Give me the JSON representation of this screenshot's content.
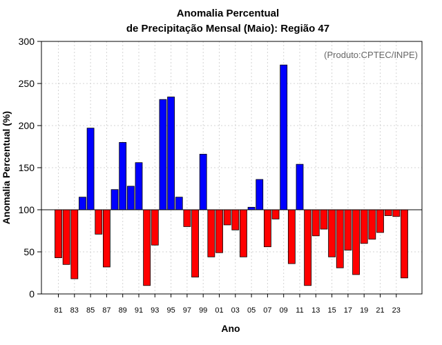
{
  "chart_data": {
    "type": "bar",
    "title_line1": "Anomalia Percentual",
    "title_line2": "de Precipitação Mensal (Maio): Região 47",
    "xlabel": "Ano",
    "ylabel": "Anomalia Percentual (%)",
    "annotation": "(Produto:CPTEC/INPE)",
    "ylim": [
      0,
      300
    ],
    "yticks": [
      "0",
      "50",
      "100",
      "150",
      "200",
      "250",
      "300"
    ],
    "baseline": 100,
    "categories": [
      "81",
      "82",
      "83",
      "84",
      "85",
      "86",
      "87",
      "88",
      "89",
      "90",
      "91",
      "92",
      "93",
      "94",
      "95",
      "96",
      "97",
      "98",
      "99",
      "00",
      "01",
      "02",
      "03",
      "04",
      "05",
      "06",
      "07",
      "08",
      "09",
      "10",
      "11",
      "12",
      "13",
      "14",
      "15",
      "16",
      "17",
      "18",
      "19",
      "20",
      "21",
      "22",
      "23",
      "24"
    ],
    "tick_labels": [
      "81",
      "83",
      "85",
      "87",
      "89",
      "91",
      "93",
      "95",
      "97",
      "99",
      "01",
      "03",
      "05",
      "07",
      "09",
      "11",
      "13",
      "15",
      "17",
      "19",
      "21",
      "23"
    ],
    "values": [
      43,
      35,
      18,
      115,
      197,
      71,
      32,
      124,
      180,
      128,
      156,
      10,
      58,
      231,
      234,
      115,
      80,
      20,
      166,
      44,
      49,
      82,
      76,
      44,
      103,
      136,
      56,
      89,
      272,
      36,
      154,
      10,
      69,
      77,
      44,
      31,
      52,
      23,
      60,
      65,
      73,
      93,
      92,
      19
    ],
    "colors": {
      "above": "#0000ff",
      "below": "#ff0000",
      "grid": "#d3d3d3",
      "outline": "#000000"
    }
  }
}
